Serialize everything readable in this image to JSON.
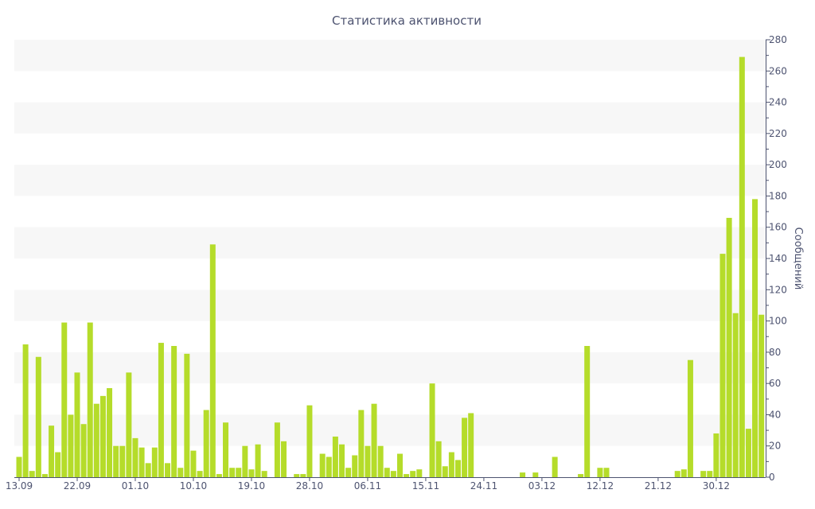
{
  "chart_data": {
    "type": "bar",
    "title": "Статистика активности",
    "ylabel": "Сообщений",
    "xlabel": "",
    "ylim": [
      0,
      280
    ],
    "yticks": [
      0,
      20,
      40,
      60,
      80,
      100,
      120,
      140,
      160,
      180,
      200,
      220,
      240,
      260,
      280
    ],
    "xtick_labels": [
      "13.09",
      "22.09",
      "01.10",
      "10.10",
      "19.10",
      "28.10",
      "06.11",
      "15.11",
      "24.11",
      "03.12",
      "12.12",
      "21.12",
      "30.12"
    ],
    "y_axis_side": "right",
    "grid": "alternating horizontal bands",
    "bar_color": "#b5dc2a",
    "band_color": "#f7f7f7",
    "axis_color": "#4d5370",
    "x": [
      "13.09",
      "14.09",
      "15.09",
      "16.09",
      "17.09",
      "18.09",
      "19.09",
      "20.09",
      "21.09",
      "22.09",
      "23.09",
      "24.09",
      "25.09",
      "26.09",
      "27.09",
      "28.09",
      "29.09",
      "30.09",
      "01.10",
      "02.10",
      "03.10",
      "04.10",
      "05.10",
      "06.10",
      "07.10",
      "08.10",
      "09.10",
      "10.10",
      "11.10",
      "12.10",
      "13.10",
      "14.10",
      "15.10",
      "16.10",
      "17.10",
      "18.10",
      "19.10",
      "20.10",
      "21.10",
      "22.10",
      "23.10",
      "24.10",
      "25.10",
      "26.10",
      "27.10",
      "28.10",
      "29.10",
      "30.10",
      "31.10",
      "01.11",
      "02.11",
      "03.11",
      "04.11",
      "05.11",
      "06.11",
      "07.11",
      "08.11",
      "09.11",
      "10.11",
      "11.11",
      "12.11",
      "13.11",
      "14.11",
      "15.11",
      "16.11",
      "17.11",
      "18.11",
      "19.11",
      "20.11",
      "21.11",
      "22.11",
      "23.11",
      "24.11",
      "25.11",
      "26.11",
      "27.11",
      "28.11",
      "29.11",
      "30.11",
      "01.12",
      "02.12",
      "03.12",
      "04.12",
      "05.12",
      "06.12",
      "07.12",
      "08.12",
      "09.12",
      "10.12",
      "11.12",
      "12.12",
      "13.12",
      "14.12",
      "15.12",
      "16.12",
      "17.12",
      "18.12",
      "19.12",
      "20.12",
      "21.12",
      "22.12",
      "23.12",
      "24.12",
      "25.12",
      "26.12",
      "27.12",
      "28.12",
      "29.12",
      "30.12",
      "31.12",
      "01.01",
      "02.01",
      "03.01",
      "04.01",
      "05.01",
      "06.01"
    ],
    "values": [
      13,
      85,
      4,
      77,
      2,
      33,
      16,
      99,
      40,
      67,
      34,
      99,
      47,
      52,
      57,
      20,
      20,
      67,
      25,
      19,
      9,
      19,
      86,
      9,
      84,
      6,
      79,
      17,
      4,
      43,
      149,
      2,
      35,
      6,
      6,
      20,
      5,
      21,
      4,
      0,
      35,
      23,
      0,
      2,
      2,
      46,
      0,
      15,
      13,
      26,
      21,
      6,
      14,
      43,
      20,
      47,
      20,
      6,
      4,
      15,
      2,
      4,
      5,
      0,
      60,
      23,
      7,
      16,
      11,
      38,
      41,
      0,
      0,
      0,
      0,
      0,
      0,
      0,
      3,
      0,
      3,
      0,
      0,
      13,
      0,
      0,
      0,
      2,
      84,
      0,
      6,
      6,
      0,
      0,
      0,
      0,
      0,
      0,
      0,
      0,
      0,
      0,
      4,
      5,
      75,
      0,
      4,
      4,
      28,
      143,
      166,
      105,
      269,
      31,
      178,
      104
    ]
  }
}
